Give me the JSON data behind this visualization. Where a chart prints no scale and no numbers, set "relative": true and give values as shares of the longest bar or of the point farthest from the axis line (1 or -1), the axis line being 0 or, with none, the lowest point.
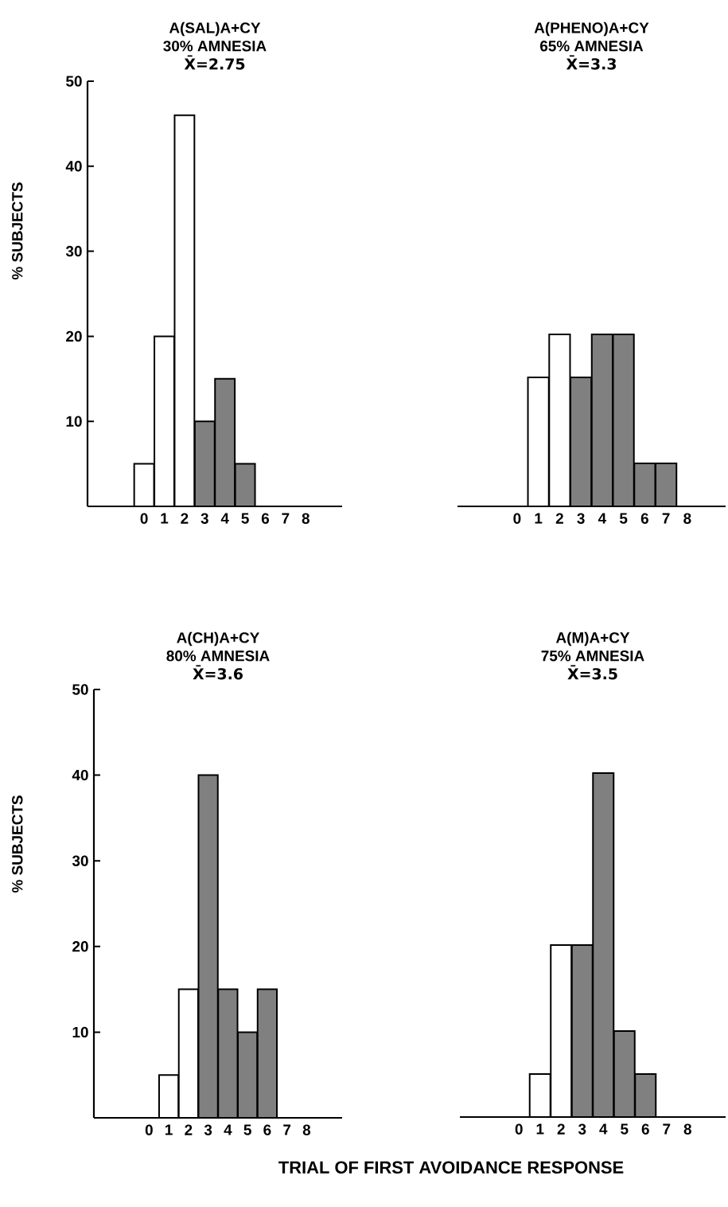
{
  "chart_data": [
    {
      "type": "bar",
      "title": "A(SAL)A+CY",
      "subtitle": "30% AMNESIA",
      "annotations": [
        "X̄=2.75"
      ],
      "ylabel": "% SUBJECTS",
      "categories": [
        "0",
        "1",
        "2",
        "3",
        "4",
        "5",
        "6",
        "7",
        "8"
      ],
      "values": [
        5,
        20,
        46,
        10,
        15,
        5,
        0,
        0,
        0
      ],
      "colors": [
        "#ffffff",
        "#ffffff",
        "#ffffff",
        "#808080",
        "#808080",
        "#808080",
        "#ffffff",
        "#ffffff",
        "#ffffff"
      ],
      "ylim": [
        0,
        50
      ],
      "yticks": [
        10,
        20,
        30,
        40,
        50
      ]
    },
    {
      "type": "bar",
      "title": "A(PHENO)A+CY",
      "subtitle": "65% AMNESIA",
      "annotations": [
        "X̄=3.3"
      ],
      "relative": true,
      "categories": [
        "0",
        "1",
        "2",
        "3",
        "4",
        "5",
        "6",
        "7",
        "8"
      ],
      "values": [
        0,
        0.75,
        1,
        0.75,
        1,
        1,
        0.25,
        0.25,
        0
      ],
      "colors": [
        "#ffffff",
        "#ffffff",
        "#ffffff",
        "#808080",
        "#808080",
        "#808080",
        "#808080",
        "#808080",
        "#ffffff"
      ]
    },
    {
      "type": "bar",
      "title": "A(CH)A+CY",
      "subtitle": "80% AMNESIA",
      "annotations": [
        "X̄=3.6"
      ],
      "ylabel": "% SUBJECTS",
      "categories": [
        "0",
        "1",
        "2",
        "3",
        "4",
        "5",
        "6",
        "7",
        "8"
      ],
      "values": [
        0,
        5,
        15,
        40,
        15,
        10,
        15,
        0,
        0
      ],
      "colors": [
        "#ffffff",
        "#ffffff",
        "#ffffff",
        "#808080",
        "#808080",
        "#808080",
        "#808080",
        "#ffffff",
        "#ffffff"
      ],
      "ylim": [
        0,
        50
      ],
      "yticks": [
        10,
        20,
        30,
        40,
        50
      ]
    },
    {
      "type": "bar",
      "title": "A(M)A+CY",
      "subtitle": "75% AMNESIA",
      "annotations": [
        "X̄=3.5"
      ],
      "xlabel": "TRIAL OF FIRST AVOIDANCE RESPONSE",
      "relative": true,
      "categories": [
        "0",
        "1",
        "2",
        "3",
        "4",
        "5",
        "6",
        "7",
        "8"
      ],
      "values": [
        0,
        0.125,
        0.5,
        0.5,
        1,
        0.25,
        0.125,
        0,
        0
      ],
      "colors": [
        "#ffffff",
        "#ffffff",
        "#ffffff",
        "#808080",
        "#808080",
        "#808080",
        "#808080",
        "#ffffff",
        "#ffffff"
      ]
    }
  ]
}
